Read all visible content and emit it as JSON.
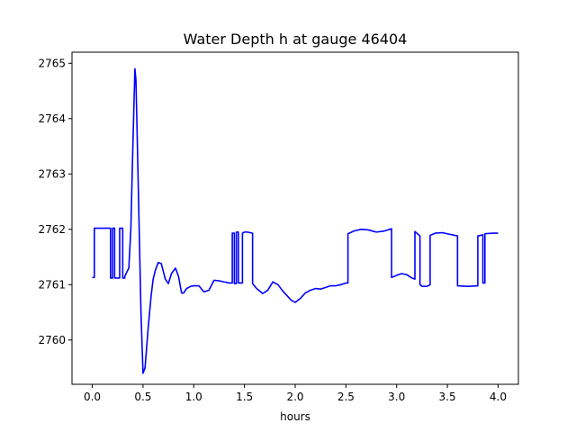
{
  "chart_data": {
    "type": "line",
    "title": "Water Depth h at gauge 46404",
    "xlabel": "hours",
    "ylabel": "",
    "xlim": [
      -0.2,
      4.2
    ],
    "ylim": [
      2759.2,
      2765.2
    ],
    "x_ticks": [
      0.0,
      0.5,
      1.0,
      1.5,
      2.0,
      2.5,
      3.0,
      3.5,
      4.0
    ],
    "x_tick_labels": [
      "0.0",
      "0.5",
      "1.0",
      "1.5",
      "2.0",
      "2.5",
      "3.0",
      "3.5",
      "4.0"
    ],
    "y_ticks": [
      2760,
      2761,
      2762,
      2763,
      2764,
      2765
    ],
    "y_tick_labels": [
      "2760",
      "2761",
      "2762",
      "2763",
      "2764",
      "2765"
    ],
    "grid": false,
    "series": [
      {
        "color": "#0000ff",
        "x": [
          0.0,
          0.02,
          0.02,
          0.18,
          0.18,
          0.2,
          0.2,
          0.22,
          0.22,
          0.27,
          0.27,
          0.3,
          0.3,
          0.32,
          0.32,
          0.36,
          0.38,
          0.4,
          0.42,
          0.43,
          0.44,
          0.46,
          0.48,
          0.5,
          0.52,
          0.55,
          0.58,
          0.6,
          0.62,
          0.65,
          0.68,
          0.72,
          0.75,
          0.78,
          0.82,
          0.85,
          0.88,
          0.9,
          0.93,
          0.97,
          1.0,
          1.05,
          1.1,
          1.15,
          1.2,
          1.25,
          1.3,
          1.35,
          1.38,
          1.38,
          1.4,
          1.4,
          1.42,
          1.42,
          1.44,
          1.44,
          1.48,
          1.48,
          1.5,
          1.5,
          1.53,
          1.58,
          1.58,
          1.62,
          1.68,
          1.73,
          1.78,
          1.83,
          1.88,
          1.92,
          1.96,
          2.0,
          2.05,
          2.1,
          2.15,
          2.2,
          2.25,
          2.3,
          2.35,
          2.4,
          2.45,
          2.5,
          2.52,
          2.52,
          2.58,
          2.65,
          2.72,
          2.8,
          2.88,
          2.95,
          2.95,
          3.0,
          3.05,
          3.1,
          3.15,
          3.18,
          3.18,
          3.23,
          3.23,
          3.25,
          3.3,
          3.33,
          3.33,
          3.38,
          3.45,
          3.5,
          3.55,
          3.6,
          3.6,
          3.7,
          3.8,
          3.8,
          3.85,
          3.85,
          3.87,
          3.87,
          3.95,
          4.0
        ],
        "y": [
          2761.13,
          2761.13,
          2762.02,
          2762.02,
          2761.12,
          2761.12,
          2762.02,
          2762.02,
          2761.12,
          2761.12,
          2762.02,
          2762.02,
          2761.12,
          2761.12,
          2761.15,
          2761.3,
          2762.0,
          2763.5,
          2764.9,
          2764.7,
          2763.9,
          2762.2,
          2760.5,
          2759.4,
          2759.5,
          2760.2,
          2760.8,
          2761.1,
          2761.25,
          2761.4,
          2761.38,
          2761.1,
          2761.02,
          2761.2,
          2761.3,
          2761.15,
          2760.85,
          2760.85,
          2760.93,
          2760.97,
          2760.98,
          2760.98,
          2760.87,
          2760.9,
          2761.08,
          2761.07,
          2761.05,
          2761.03,
          2761.03,
          2761.93,
          2761.93,
          2761.02,
          2761.02,
          2761.95,
          2761.95,
          2761.03,
          2761.03,
          2761.93,
          2761.95,
          2761.95,
          2761.95,
          2761.93,
          2761.02,
          2760.93,
          2760.84,
          2760.9,
          2761.05,
          2761.0,
          2760.88,
          2760.8,
          2760.72,
          2760.68,
          2760.75,
          2760.85,
          2760.9,
          2760.93,
          2760.92,
          2760.95,
          2760.98,
          2760.98,
          2761.0,
          2761.03,
          2761.03,
          2761.92,
          2761.97,
          2762.0,
          2761.99,
          2761.95,
          2761.97,
          2762.01,
          2761.13,
          2761.17,
          2761.2,
          2761.18,
          2761.12,
          2761.1,
          2761.96,
          2761.88,
          2761.0,
          2760.97,
          2760.97,
          2761.0,
          2761.89,
          2761.93,
          2761.94,
          2761.92,
          2761.9,
          2761.88,
          2760.98,
          2760.97,
          2760.98,
          2761.88,
          2761.9,
          2761.03,
          2761.03,
          2761.92,
          2761.93,
          2761.93
        ]
      }
    ]
  }
}
